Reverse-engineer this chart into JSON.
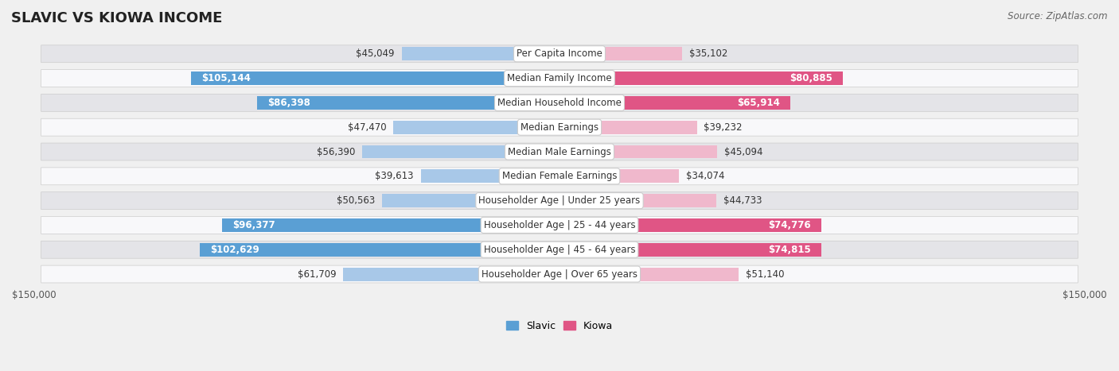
{
  "title": "SLAVIC VS KIOWA INCOME",
  "source": "Source: ZipAtlas.com",
  "categories": [
    "Per Capita Income",
    "Median Family Income",
    "Median Household Income",
    "Median Earnings",
    "Median Male Earnings",
    "Median Female Earnings",
    "Householder Age | Under 25 years",
    "Householder Age | 25 - 44 years",
    "Householder Age | 45 - 64 years",
    "Householder Age | Over 65 years"
  ],
  "slavic_values": [
    45049,
    105144,
    86398,
    47470,
    56390,
    39613,
    50563,
    96377,
    102629,
    61709
  ],
  "kiowa_values": [
    35102,
    80885,
    65914,
    39232,
    45094,
    34074,
    44733,
    74776,
    74815,
    51140
  ],
  "slavic_labels": [
    "$45,049",
    "$105,144",
    "$86,398",
    "$47,470",
    "$56,390",
    "$39,613",
    "$50,563",
    "$96,377",
    "$102,629",
    "$61,709"
  ],
  "kiowa_labels": [
    "$35,102",
    "$80,885",
    "$65,914",
    "$39,232",
    "$45,094",
    "$34,074",
    "$44,733",
    "$74,776",
    "$74,815",
    "$51,140"
  ],
  "max_value": 150000,
  "slavic_color_normal": "#a8c8e8",
  "slavic_color_bold": "#5a9fd4",
  "kiowa_color_normal": "#f0b8cc",
  "kiowa_color_bold": "#e05585",
  "slavic_bold": [
    false,
    true,
    true,
    false,
    false,
    false,
    false,
    true,
    true,
    false
  ],
  "kiowa_bold": [
    false,
    true,
    true,
    false,
    false,
    false,
    false,
    true,
    true,
    false
  ],
  "bg_color": "#f0f0f0",
  "row_bg_even": "#e4e4e8",
  "row_bg_odd": "#f8f8fa",
  "title_fontsize": 13,
  "label_fontsize": 8.5,
  "source_fontsize": 8.5,
  "legend_fontsize": 9,
  "axis_label_fontsize": 8.5
}
